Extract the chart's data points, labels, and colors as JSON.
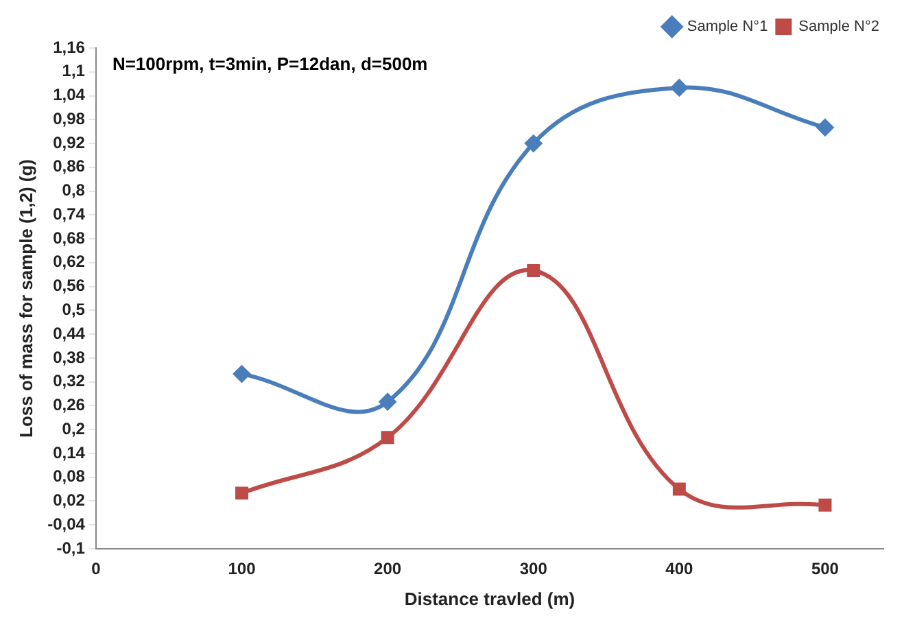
{
  "chart_data": {
    "type": "line",
    "xlabel": "Distance travled (m)",
    "ylabel": "Loss of mass for sample (1,2) (g)",
    "annotations": [
      "N=100rpm, t=3min, P=12dan, d=500m"
    ],
    "x": [
      100,
      200,
      300,
      400,
      500
    ],
    "series": [
      {
        "name": "Sample N°1",
        "color": "#4a7ebb",
        "marker": "diamond",
        "values": [
          0.34,
          0.27,
          0.92,
          1.06,
          0.96
        ]
      },
      {
        "name": "Sample N°2",
        "color": "#be4b48",
        "marker": "square",
        "values": [
          0.04,
          0.18,
          0.6,
          0.05,
          0.01
        ]
      }
    ],
    "xlim": [
      0,
      540
    ],
    "xticks": [
      0,
      100,
      200,
      300,
      400,
      500
    ],
    "ylim": [
      -0.1,
      1.16
    ],
    "yticks": [
      {
        "value": -0.1,
        "label": "-0,1"
      },
      {
        "value": -0.04,
        "label": "-0,04"
      },
      {
        "value": 0.02,
        "label": "0,02"
      },
      {
        "value": 0.08,
        "label": "0,08"
      },
      {
        "value": 0.14,
        "label": "0,14"
      },
      {
        "value": 0.2,
        "label": "0,2"
      },
      {
        "value": 0.26,
        "label": "0,26"
      },
      {
        "value": 0.32,
        "label": "0,32"
      },
      {
        "value": 0.38,
        "label": "0,38"
      },
      {
        "value": 0.44,
        "label": "0,44"
      },
      {
        "value": 0.5,
        "label": "0,5"
      },
      {
        "value": 0.56,
        "label": "0,56"
      },
      {
        "value": 0.62,
        "label": "0,62"
      },
      {
        "value": 0.68,
        "label": "0,68"
      },
      {
        "value": 0.74,
        "label": "0,74"
      },
      {
        "value": 0.8,
        "label": "0,8"
      },
      {
        "value": 0.86,
        "label": "0,86"
      },
      {
        "value": 0.92,
        "label": "0,92"
      },
      {
        "value": 0.98,
        "label": "0,98"
      },
      {
        "value": 1.04,
        "label": "1,04"
      },
      {
        "value": 1.1,
        "label": "1,1"
      },
      {
        "value": 1.16,
        "label": "1,16"
      }
    ],
    "grid": false,
    "legend": "top right",
    "line_style": "solid"
  }
}
